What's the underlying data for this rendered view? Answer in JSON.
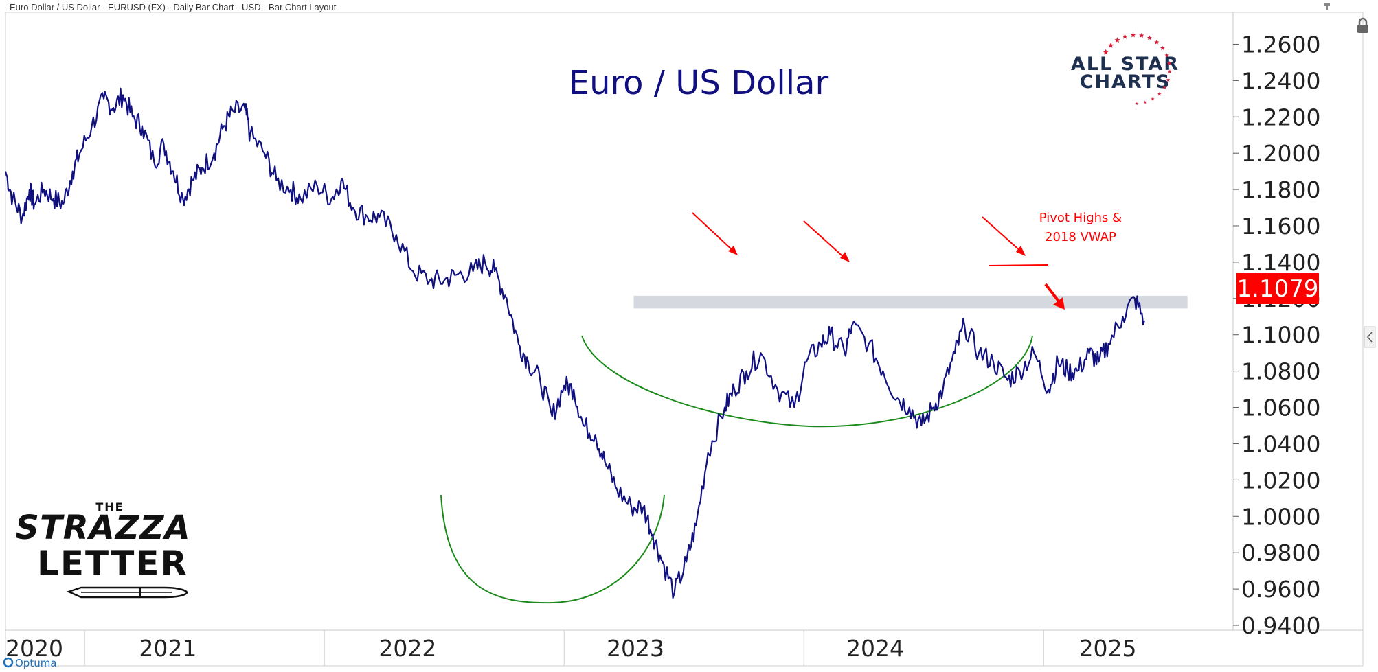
{
  "header": {
    "description": "Euro Dollar / US Dollar - EURUSD (FX) - Daily Bar Chart - USD - Bar Chart Layout"
  },
  "branding": {
    "allstar_line1": "ALL STAR",
    "allstar_line2": "CHARTS",
    "strazza_the": "THE",
    "strazza_name": "STRAZZA",
    "strazza_letter": "LETTER",
    "optuma": "Optuma"
  },
  "colors": {
    "price_line": "#101080",
    "title": "#101080",
    "annotation_red": "#ff0000",
    "arc_green": "#1a8a1a",
    "resistance_band": "#d5d9df",
    "price_tag_bg": "#ff0000",
    "brand_navy": "#1e3050",
    "brand_red": "#d8203a"
  },
  "chart_data": {
    "type": "line",
    "title": "Euro / US Dollar",
    "xlabel": "",
    "ylabel": "",
    "ylim": [
      0.94,
      1.27
    ],
    "xlim": [
      2020.0,
      2025.12
    ],
    "y_ticks": [
      "1.2600",
      "1.2400",
      "1.2200",
      "1.2000",
      "1.1800",
      "1.1600",
      "1.1400",
      "1.1200",
      "1.1000",
      "1.0800",
      "1.0600",
      "1.0400",
      "1.0200",
      "1.0000",
      "0.9800",
      "0.9600",
      "0.9400"
    ],
    "x_ticks": [
      "2020",
      "2021",
      "2022",
      "2023",
      "2024",
      "2025"
    ],
    "last_price": "1.1079",
    "grid": false,
    "series": [
      {
        "x": [
          2020.0,
          2020.03,
          2020.07,
          2020.1,
          2020.12,
          2020.16,
          2020.2,
          2020.24,
          2020.28,
          2020.31,
          2020.36,
          2020.41,
          2020.45,
          2020.49,
          2020.53,
          2020.57,
          2020.62,
          2020.66,
          2020.7,
          2020.74,
          2020.78,
          2020.82,
          2020.87,
          2020.91,
          2020.95,
          2021.0,
          2021.02,
          2021.08,
          2021.13,
          2021.19,
          2021.23,
          2021.3,
          2021.36,
          2021.4,
          2021.45,
          2021.51,
          2021.56,
          2021.63,
          2021.7,
          2021.77,
          2021.83,
          2021.88,
          2021.95,
          2022.0,
          2022.04,
          2022.09,
          2022.14,
          2022.18,
          2022.23,
          2022.28,
          2022.33,
          2022.37,
          2022.41,
          2022.46,
          2022.5,
          2022.55,
          2022.61,
          2022.66,
          2022.7,
          2022.74,
          2022.79,
          2022.84,
          2022.88,
          2022.93,
          2023.0,
          2023.04,
          2023.09,
          2023.15,
          2023.22,
          2023.29,
          2023.34,
          2023.4,
          2023.44,
          2023.5,
          2023.53,
          2023.6,
          2023.66,
          2023.72,
          2023.77,
          2023.82,
          2023.87,
          2023.91,
          2023.96,
          2024.0,
          2024.06,
          2024.12,
          2024.18,
          2024.23,
          2024.29,
          2024.35,
          2024.39,
          2024.43,
          2024.47,
          2024.52,
          2024.56,
          2024.6,
          2024.66,
          2024.71,
          2024.75
        ],
        "values": [
          1.19,
          1.175,
          1.165,
          1.18,
          1.172,
          1.18,
          1.175,
          1.172,
          1.19,
          1.2,
          1.215,
          1.23,
          1.225,
          1.232,
          1.22,
          1.215,
          1.195,
          1.205,
          1.19,
          1.175,
          1.185,
          1.192,
          1.2,
          1.215,
          1.223,
          1.224,
          1.21,
          1.2,
          1.185,
          1.18,
          1.175,
          1.182,
          1.175,
          1.185,
          1.17,
          1.165,
          1.165,
          1.155,
          1.135,
          1.13,
          1.13,
          1.133,
          1.135,
          1.14,
          1.135,
          1.12,
          1.095,
          1.085,
          1.075,
          1.055,
          1.072,
          1.07,
          1.05,
          1.045,
          1.03,
          1.015,
          1.005,
          1.005,
          0.99,
          0.975,
          0.958,
          0.975,
          0.995,
          1.035,
          1.06,
          1.07,
          1.08,
          1.09,
          1.07,
          1.06,
          1.085,
          1.095,
          1.1,
          1.09,
          1.105,
          1.095,
          1.08,
          1.065,
          1.06,
          1.05,
          1.06,
          1.07,
          1.09,
          1.105,
          1.09,
          1.085,
          1.075,
          1.08,
          1.09,
          1.07,
          1.085,
          1.08,
          1.08,
          1.09,
          1.085,
          1.095,
          1.11,
          1.12,
          1.1079
        ]
      }
    ],
    "annotations": {
      "pivot_label_line1": "Pivot Highs &",
      "pivot_label_line2": "2018 VWAP"
    }
  }
}
